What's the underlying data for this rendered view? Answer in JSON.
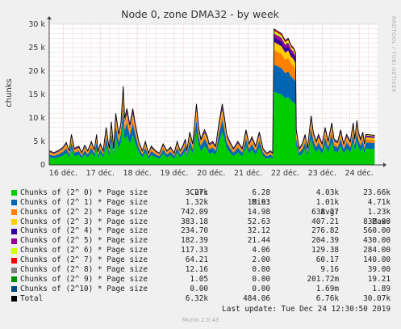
{
  "chart_data": {
    "type": "area",
    "title": "Node 0, zone DMA32 - by week",
    "ylabel": "chunks",
    "xlabel": "",
    "ylim": [
      0,
      30000
    ],
    "yticks": [
      0,
      5000,
      10000,
      15000,
      20000,
      25000,
      30000
    ],
    "ytick_labels": [
      "0",
      "5 k",
      "10 k",
      "15 k",
      "20 k",
      "25 k",
      "30 k"
    ],
    "xtick_labels": [
      "16 déc.",
      "17 déc.",
      "18 déc.",
      "19 déc.",
      "20 déc.",
      "21 déc.",
      "22 déc.",
      "23 déc.",
      "24 déc."
    ],
    "x_range_days": [
      15.62,
      24.52
    ],
    "grid": true,
    "total_series": [
      [
        15.62,
        3000
      ],
      [
        15.75,
        2600
      ],
      [
        15.9,
        3200
      ],
      [
        16.0,
        3800
      ],
      [
        16.08,
        4800
      ],
      [
        16.16,
        3000
      ],
      [
        16.22,
        6500
      ],
      [
        16.3,
        3500
      ],
      [
        16.42,
        4000
      ],
      [
        16.5,
        2600
      ],
      [
        16.58,
        4200
      ],
      [
        16.66,
        3000
      ],
      [
        16.76,
        5000
      ],
      [
        16.84,
        3200
      ],
      [
        16.9,
        6500
      ],
      [
        16.94,
        2800
      ],
      [
        17.0,
        4500
      ],
      [
        17.08,
        3000
      ],
      [
        17.16,
        8000
      ],
      [
        17.24,
        3500
      ],
      [
        17.3,
        9200
      ],
      [
        17.36,
        3500
      ],
      [
        17.42,
        11000
      ],
      [
        17.5,
        6500
      ],
      [
        17.56,
        9000
      ],
      [
        17.62,
        16800
      ],
      [
        17.66,
        10000
      ],
      [
        17.72,
        12000
      ],
      [
        17.8,
        8500
      ],
      [
        17.88,
        12000
      ],
      [
        17.94,
        9000
      ],
      [
        18.04,
        5000
      ],
      [
        18.14,
        3000
      ],
      [
        18.22,
        5000
      ],
      [
        18.3,
        2500
      ],
      [
        18.38,
        4000
      ],
      [
        18.5,
        3000
      ],
      [
        18.6,
        2500
      ],
      [
        18.7,
        4500
      ],
      [
        18.8,
        3000
      ],
      [
        18.9,
        3800
      ],
      [
        19.0,
        2500
      ],
      [
        19.08,
        5000
      ],
      [
        19.16,
        3000
      ],
      [
        19.24,
        4200
      ],
      [
        19.3,
        5500
      ],
      [
        19.34,
        3000
      ],
      [
        19.42,
        7000
      ],
      [
        19.5,
        4500
      ],
      [
        19.6,
        13000
      ],
      [
        19.66,
        8000
      ],
      [
        19.72,
        5500
      ],
      [
        19.82,
        7500
      ],
      [
        19.9,
        6000
      ],
      [
        19.94,
        4500
      ],
      [
        20.04,
        5000
      ],
      [
        20.12,
        4000
      ],
      [
        20.22,
        9500
      ],
      [
        20.3,
        13000
      ],
      [
        20.36,
        10000
      ],
      [
        20.42,
        6500
      ],
      [
        20.5,
        5000
      ],
      [
        20.6,
        3500
      ],
      [
        20.72,
        5000
      ],
      [
        20.84,
        3500
      ],
      [
        20.94,
        7500
      ],
      [
        21.02,
        4500
      ],
      [
        21.1,
        6000
      ],
      [
        21.2,
        4000
      ],
      [
        21.3,
        7000
      ],
      [
        21.4,
        3500
      ],
      [
        21.5,
        2500
      ],
      [
        21.6,
        3000
      ],
      [
        21.66,
        2500
      ],
      [
        21.7,
        29000
      ],
      [
        21.8,
        28500
      ],
      [
        21.9,
        28000
      ],
      [
        22.0,
        26500
      ],
      [
        22.08,
        27000
      ],
      [
        22.16,
        25500
      ],
      [
        22.22,
        25000
      ],
      [
        22.28,
        24000
      ],
      [
        22.3,
        7500
      ],
      [
        22.38,
        3500
      ],
      [
        22.46,
        4500
      ],
      [
        22.54,
        6500
      ],
      [
        22.6,
        3500
      ],
      [
        22.7,
        10500
      ],
      [
        22.76,
        7000
      ],
      [
        22.84,
        5000
      ],
      [
        22.9,
        6500
      ],
      [
        23.0,
        4500
      ],
      [
        23.08,
        8000
      ],
      [
        23.16,
        5000
      ],
      [
        23.26,
        9000
      ],
      [
        23.32,
        5500
      ],
      [
        23.42,
        5000
      ],
      [
        23.5,
        7500
      ],
      [
        23.58,
        4500
      ],
      [
        23.66,
        6500
      ],
      [
        23.76,
        5000
      ],
      [
        23.84,
        9000
      ],
      [
        23.88,
        5500
      ],
      [
        23.94,
        9500
      ],
      [
        23.98,
        7000
      ],
      [
        24.04,
        5500
      ],
      [
        24.1,
        7000
      ],
      [
        24.14,
        4500
      ],
      [
        24.18,
        6500
      ],
      [
        24.32,
        6400
      ],
      [
        24.42,
        6300
      ]
    ],
    "series": [
      {
        "name": "Chunks of (2^ 0) * Page size",
        "color": "#00cc00",
        "cur": "3.27k",
        "min": "6.28",
        "avg": "4.03k",
        "max": "23.66k"
      },
      {
        "name": "Chunks of (2^ 1) * Page size",
        "color": "#0066b3",
        "cur": "1.32k",
        "min": "10.93",
        "avg": "1.01k",
        "max": "4.71k"
      },
      {
        "name": "Chunks of (2^ 2) * Page size",
        "color": "#ff8000",
        "cur": "742.09",
        "min": "14.98",
        "avg": "638.27",
        "max": "1.23k"
      },
      {
        "name": "Chunks of (2^ 3) * Page size",
        "color": "#ffcc00",
        "cur": "383.18",
        "min": "52.63",
        "avg": "407.21",
        "max": "832.00"
      },
      {
        "name": "Chunks of (2^ 4) * Page size",
        "color": "#330099",
        "cur": "234.70",
        "min": "32.12",
        "avg": "276.82",
        "max": "560.00"
      },
      {
        "name": "Chunks of (2^ 5) * Page size",
        "color": "#990099",
        "cur": "182.39",
        "min": "21.44",
        "avg": "204.39",
        "max": "430.00"
      },
      {
        "name": "Chunks of (2^ 6) * Page size",
        "color": "#ccff00",
        "cur": "117.33",
        "min": "4.06",
        "avg": "129.38",
        "max": "284.00"
      },
      {
        "name": "Chunks of (2^ 7) * Page size",
        "color": "#ff0000",
        "cur": "64.21",
        "min": "2.00",
        "avg": "60.17",
        "max": "140.00"
      },
      {
        "name": "Chunks of (2^ 8) * Page size",
        "color": "#808080",
        "cur": "12.16",
        "min": "0.00",
        "avg": "9.16",
        "max": "39.00"
      },
      {
        "name": "Chunks of (2^ 9) * Page size",
        "color": "#008f00",
        "cur": "1.05",
        "min": "0.00",
        "avg": "201.72m",
        "max": "19.21"
      },
      {
        "name": "Chunks of (2^10) * Page size",
        "color": "#00487d",
        "cur": "0.00",
        "min": "0.00",
        "avg": "1.69m",
        "max": "1.89"
      },
      {
        "name": "Total",
        "color": "#000000",
        "cur": "6.32k",
        "min": "484.06",
        "avg": "6.76k",
        "max": "30.07k"
      }
    ],
    "stack_fractions": [
      0.536,
      0.202,
      0.108,
      0.058,
      0.036,
      0.028,
      0.018,
      0.01,
      0.004
    ]
  },
  "legend": {
    "headers": {
      "cur": "Cur:",
      "min": "Min:",
      "avg": "Avg:",
      "max": "Max:"
    }
  },
  "footer": {
    "last_update": "Last update: Tue Dec 24 12:30:50 2019",
    "munin": "Munin 2.0.43",
    "rrd_credit": "RRDTOOL / TOBI OETIKER"
  }
}
